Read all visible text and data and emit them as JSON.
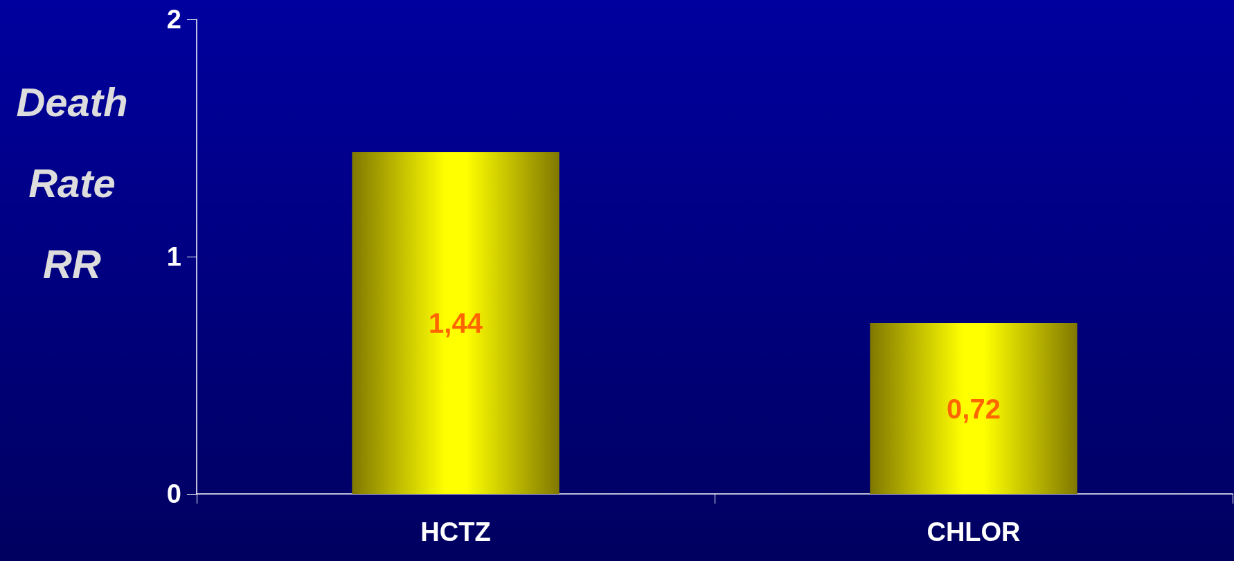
{
  "chart_data": {
    "type": "bar",
    "ylabel": "Death Rate RR",
    "categories": [
      "HCTZ",
      "CHLOR"
    ],
    "series": [
      {
        "color": "#ffff00",
        "values": [
          1.44,
          0.72
        ],
        "value_labels": [
          "1,44",
          "0,72"
        ]
      }
    ],
    "ylim": [
      0,
      2
    ],
    "yticks": [
      0,
      1,
      2
    ],
    "grid": false
  }
}
